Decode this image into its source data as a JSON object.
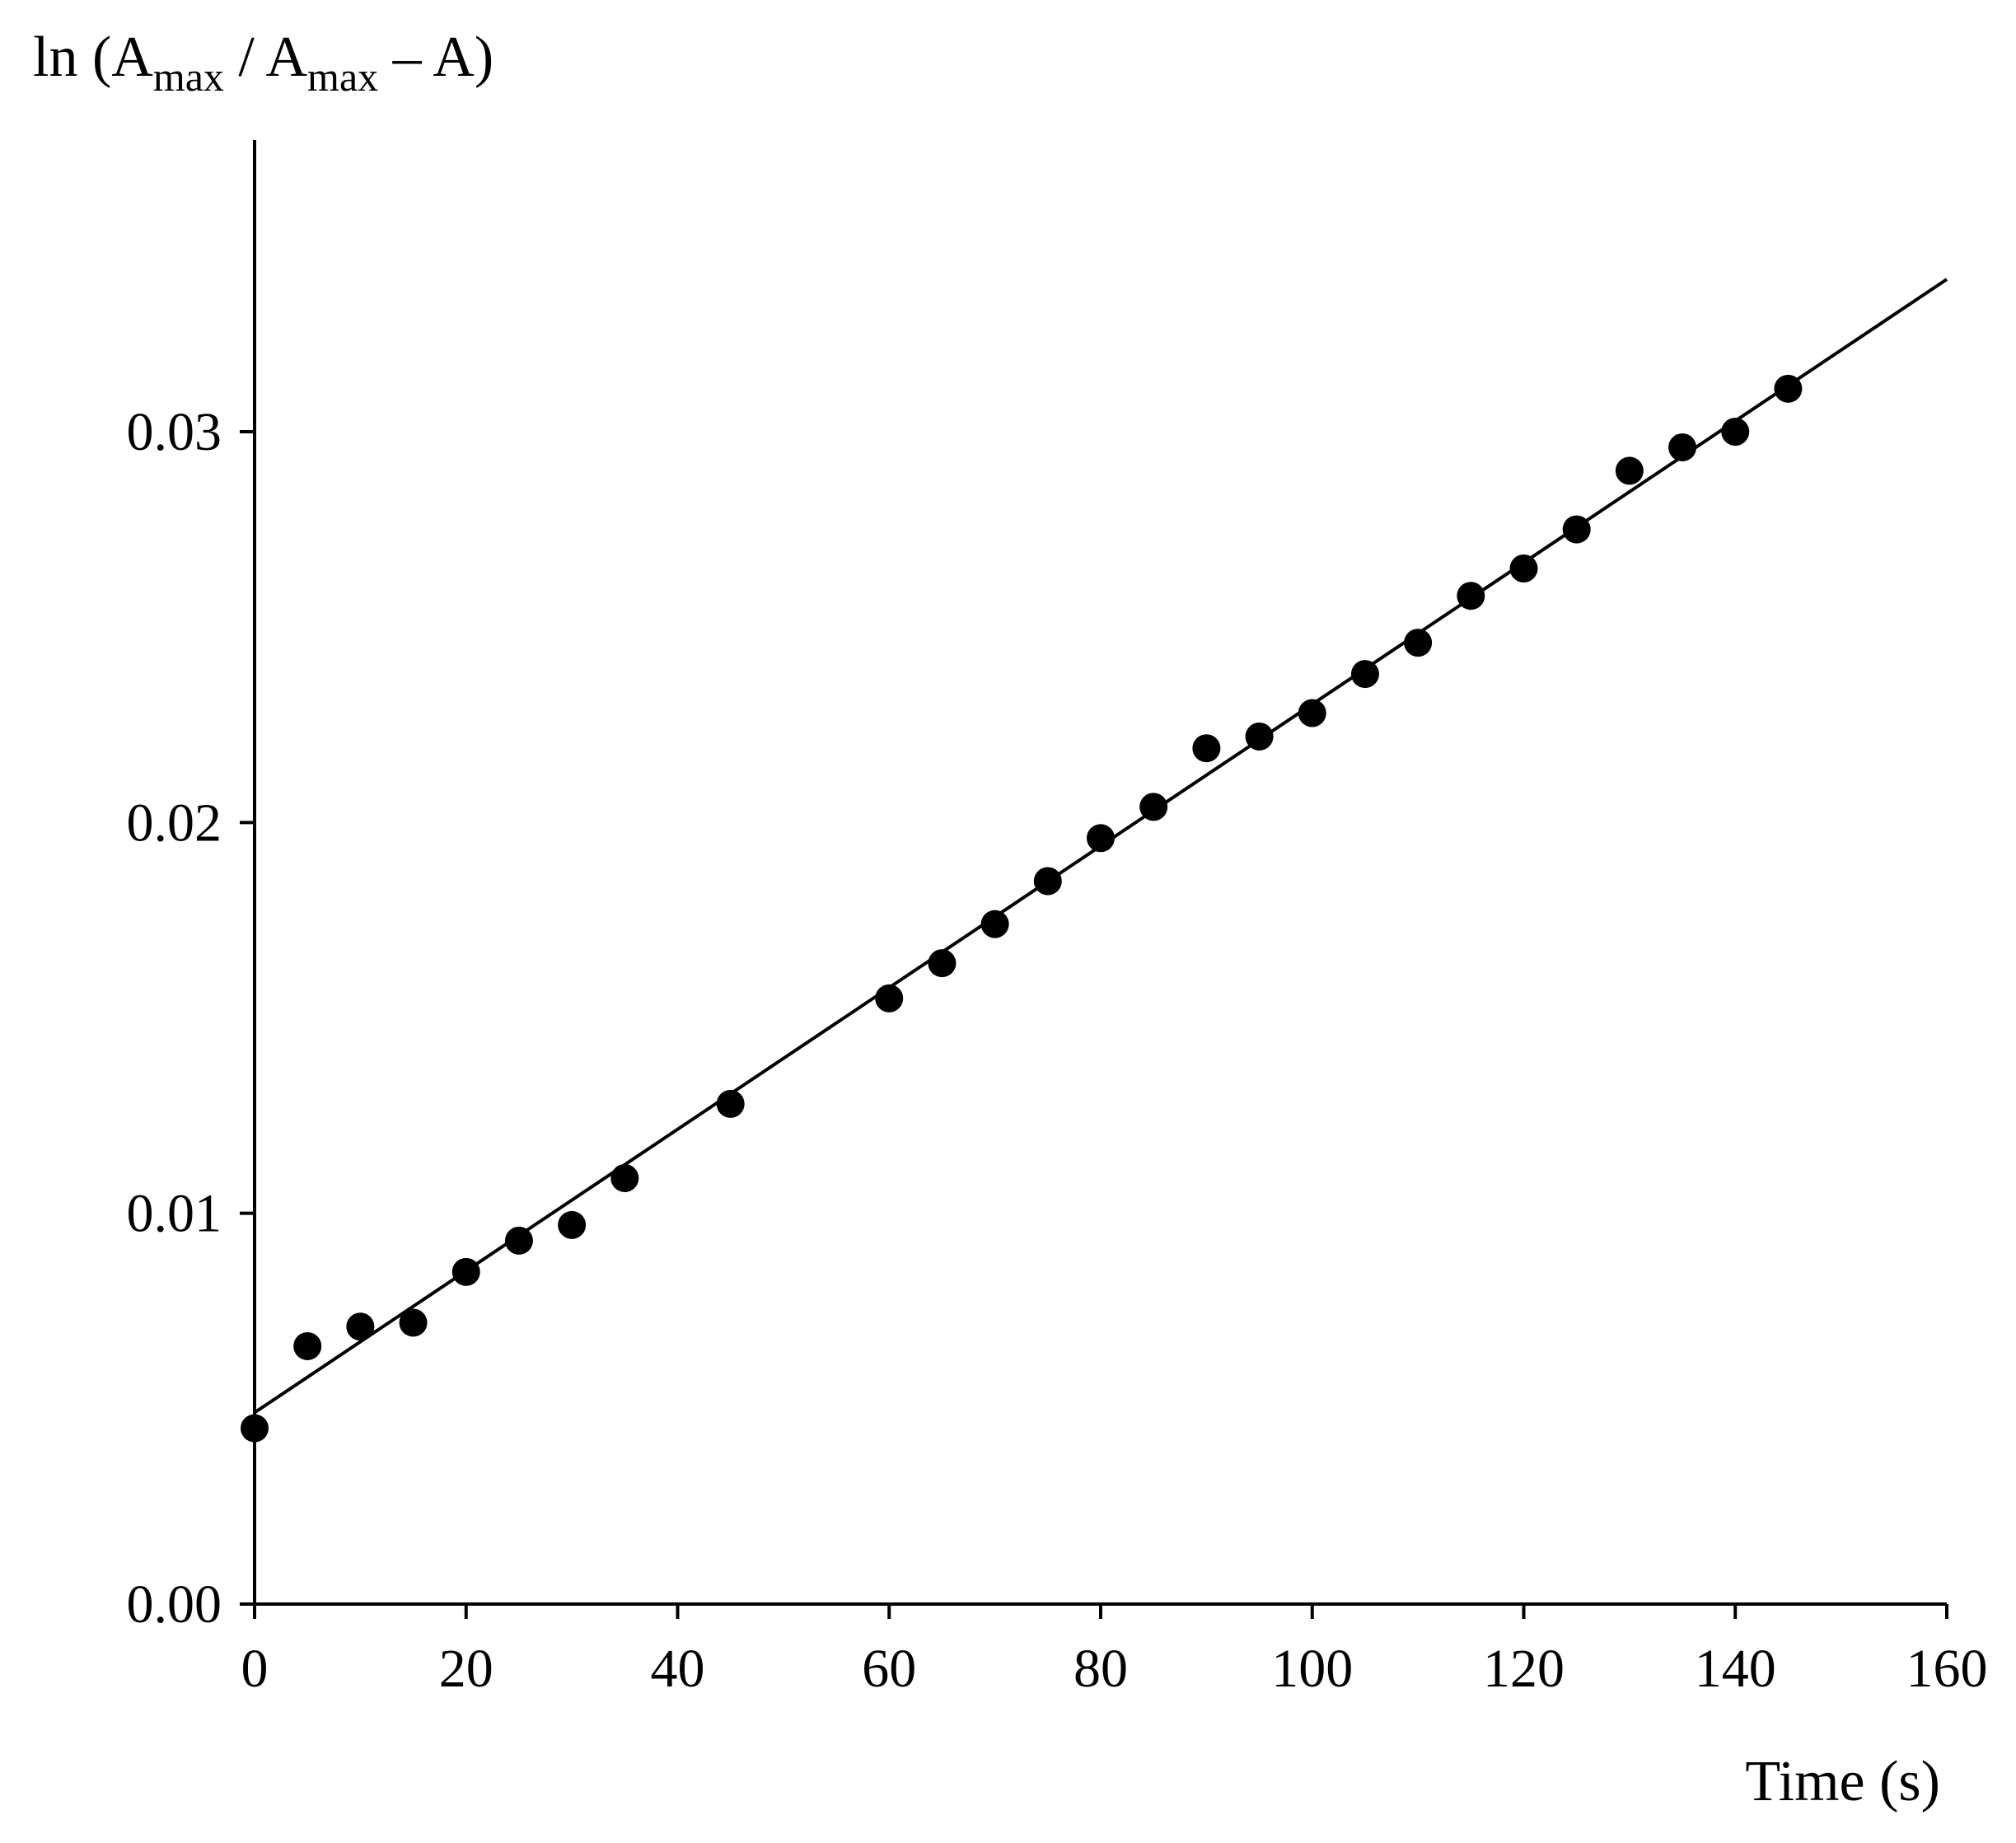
{
  "chart_data": {
    "type": "scatter",
    "ylabel": {
      "prefix": "ln (A",
      "sub1": "max",
      "mid": " / A",
      "sub2": "max",
      "suffix": " – A)"
    },
    "xlabel": "Time (s)",
    "xlim": [
      0,
      160
    ],
    "ylim": [
      0,
      0.037
    ],
    "x_ticks": [
      0,
      20,
      40,
      60,
      80,
      100,
      120,
      140,
      160
    ],
    "x_tick_labels": [
      "0",
      "20",
      "40",
      "60",
      "80",
      "100",
      "120",
      "140",
      "160"
    ],
    "y_ticks": [
      0,
      0.01,
      0.02,
      0.03
    ],
    "y_tick_labels": [
      "0.00",
      "0.01",
      "0.02",
      "0.03"
    ],
    "grid": false,
    "points": {
      "x": [
        0,
        5,
        10,
        15,
        20,
        25,
        30,
        35,
        45,
        60,
        65,
        70,
        75,
        80,
        85,
        90,
        95,
        100,
        105,
        110,
        115,
        120,
        125,
        130,
        135,
        140,
        145
      ],
      "y": [
        0.0045,
        0.0066,
        0.0071,
        0.0072,
        0.0085,
        0.0093,
        0.0097,
        0.0109,
        0.0128,
        0.0155,
        0.0164,
        0.0174,
        0.0185,
        0.0196,
        0.0204,
        0.0219,
        0.0222,
        0.0228,
        0.0238,
        0.0246,
        0.0258,
        0.0265,
        0.0275,
        0.029,
        0.0296,
        0.03,
        0.0311
      ]
    },
    "fit_line": {
      "x": [
        0,
        160
      ],
      "y": [
        0.0049,
        0.0339
      ]
    }
  }
}
